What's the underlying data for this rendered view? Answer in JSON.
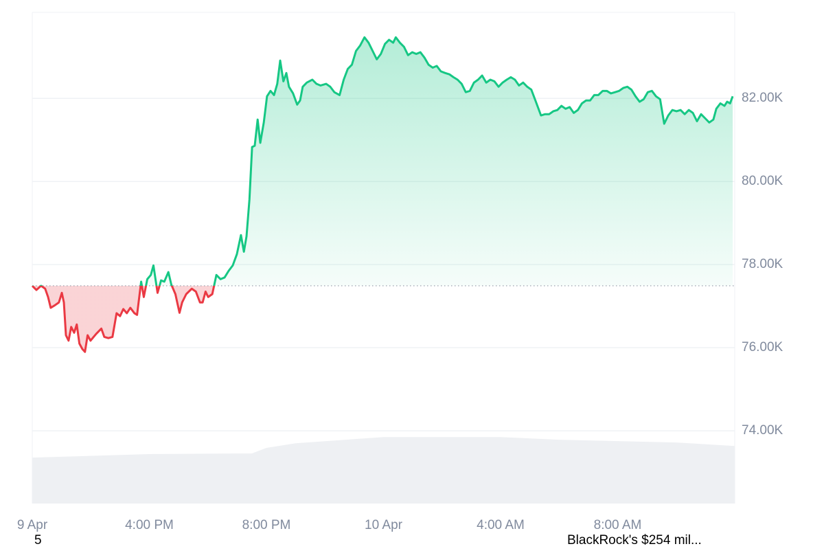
{
  "chart_data": {
    "type": "line",
    "xlim": [
      12,
      36
    ],
    "xticks": [
      {
        "value": 12,
        "label": "9 Apr"
      },
      {
        "value": 16,
        "label": "4:00 PM"
      },
      {
        "value": 20,
        "label": "8:00 PM"
      },
      {
        "value": 24,
        "label": "10 Apr"
      },
      {
        "value": 28,
        "label": "4:00 AM"
      },
      {
        "value": 32,
        "label": "8:00 AM"
      }
    ],
    "ylim": [
      72250,
      84070
    ],
    "yticks": [
      {
        "value": 74000,
        "label": "74.00K"
      },
      {
        "value": 76000,
        "label": "76.00K"
      },
      {
        "value": 78000,
        "label": "78.00K"
      },
      {
        "value": 80000,
        "label": "80.00K"
      },
      {
        "value": 82000,
        "label": "82.00K"
      }
    ],
    "grid": true,
    "baseline": 77490,
    "up_color": "#16c784",
    "down_color": "#ea3943",
    "x": [
      12.0,
      12.14,
      12.3,
      12.44,
      12.54,
      12.63,
      12.77,
      12.91,
      13.01,
      13.08,
      13.15,
      13.24,
      13.33,
      13.43,
      13.52,
      13.61,
      13.71,
      13.8,
      13.89,
      13.99,
      14.18,
      14.36,
      14.46,
      14.6,
      14.74,
      14.88,
      15.0,
      15.11,
      15.23,
      15.35,
      15.49,
      15.58,
      15.72,
      15.81,
      15.93,
      16.05,
      16.14,
      16.28,
      16.4,
      16.51,
      16.65,
      16.75,
      16.89,
      17.03,
      17.12,
      17.26,
      17.45,
      17.59,
      17.73,
      17.82,
      17.92,
      18.01,
      18.15,
      18.29,
      18.43,
      18.57,
      18.71,
      18.85,
      18.99,
      19.13,
      19.23,
      19.32,
      19.42,
      19.51,
      19.6,
      19.7,
      19.79,
      19.91,
      20.02,
      20.14,
      20.26,
      20.37,
      20.47,
      20.58,
      20.68,
      20.77,
      20.91,
      21.05,
      21.15,
      21.24,
      21.38,
      21.57,
      21.71,
      21.85,
      22.04,
      22.18,
      22.32,
      22.5,
      22.64,
      22.78,
      22.92,
      23.06,
      23.2,
      23.35,
      23.49,
      23.63,
      23.77,
      23.91,
      24.05,
      24.19,
      24.33,
      24.42,
      24.56,
      24.7,
      24.84,
      24.98,
      25.12,
      25.26,
      25.4,
      25.54,
      25.68,
      25.82,
      25.96,
      26.11,
      26.25,
      26.39,
      26.53,
      26.67,
      26.81,
      26.95,
      27.09,
      27.23,
      27.37,
      27.51,
      27.65,
      27.79,
      27.93,
      28.07,
      28.21,
      28.35,
      28.49,
      28.63,
      28.77,
      28.91,
      29.05,
      29.19,
      29.38,
      29.52,
      29.66,
      29.8,
      29.94,
      30.08,
      30.22,
      30.36,
      30.5,
      30.64,
      30.78,
      30.92,
      31.06,
      31.2,
      31.34,
      31.49,
      31.63,
      31.77,
      31.91,
      32.05,
      32.19,
      32.33,
      32.47,
      32.61,
      32.75,
      32.89,
      33.03,
      33.17,
      33.31,
      33.45,
      33.59,
      33.73,
      33.87,
      34.01,
      34.15,
      34.29,
      34.43,
      34.57,
      34.71,
      34.85,
      34.99,
      35.13,
      35.27,
      35.37,
      35.51,
      35.65,
      35.74,
      35.84,
      35.93
    ],
    "values": [
      77490,
      77390,
      77490,
      77420,
      77220,
      76960,
      77020,
      77090,
      77320,
      77090,
      76300,
      76170,
      76500,
      76360,
      76560,
      76100,
      75970,
      75900,
      76300,
      76170,
      76330,
      76460,
      76260,
      76230,
      76260,
      76830,
      76760,
      76930,
      76830,
      76960,
      76830,
      76790,
      77590,
      77220,
      77650,
      77750,
      77980,
      77320,
      77620,
      77590,
      77820,
      77520,
      77290,
      76840,
      77090,
      77290,
      77420,
      77350,
      77090,
      77090,
      77350,
      77220,
      77290,
      77750,
      77650,
      77690,
      77850,
      77980,
      78250,
      78710,
      78310,
      78680,
      79570,
      80830,
      80860,
      81490,
      80930,
      81420,
      82050,
      82180,
      82080,
      82350,
      82910,
      82410,
      82610,
      82280,
      82120,
      81850,
      81950,
      82280,
      82380,
      82450,
      82350,
      82310,
      82350,
      82280,
      82150,
      82080,
      82450,
      82710,
      82810,
      83140,
      83270,
      83470,
      83340,
      83140,
      82940,
      83070,
      83310,
      83410,
      83340,
      83470,
      83340,
      83240,
      83040,
      83110,
      83070,
      83110,
      82980,
      82810,
      82740,
      82780,
      82650,
      82610,
      82580,
      82510,
      82450,
      82350,
      82150,
      82180,
      82380,
      82450,
      82550,
      82380,
      82450,
      82410,
      82280,
      82380,
      82450,
      82510,
      82450,
      82310,
      82380,
      82280,
      82210,
      81950,
      81590,
      81620,
      81620,
      81690,
      81720,
      81820,
      81750,
      81790,
      81650,
      81720,
      81880,
      81950,
      81950,
      82080,
      82080,
      82180,
      82180,
      82120,
      82150,
      82180,
      82250,
      82280,
      82210,
      82050,
      81920,
      81980,
      82150,
      82180,
      82050,
      81980,
      81390,
      81590,
      81720,
      81690,
      81720,
      81620,
      81720,
      81650,
      81450,
      81620,
      81520,
      81420,
      81490,
      81750,
      81880,
      81820,
      81920,
      81880,
      82050
    ],
    "volume": {
      "color": "#eef0f3",
      "x": [
        12,
        16,
        19,
        19.5,
        20,
        21,
        24,
        28,
        30,
        34,
        36
      ],
      "values": [
        73355,
        73440,
        73455,
        73455,
        73590,
        73700,
        73850,
        73850,
        73785,
        73720,
        73635
      ]
    }
  },
  "ticker": {
    "left": "5",
    "right": "BlackRock's $254 mil..."
  }
}
